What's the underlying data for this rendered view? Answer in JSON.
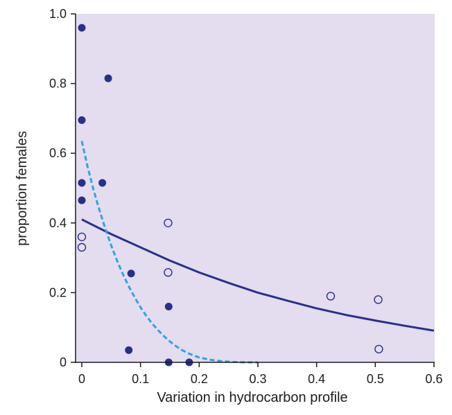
{
  "colors": {
    "plot_background": "#e4dcef",
    "axis": "#1c1c1c",
    "filled_points": "#27308c",
    "open_points": "#27308c",
    "solid_curve": "#27308c",
    "dashed_curve": "#2aa6df"
  },
  "chart_data": {
    "type": "scatter",
    "xlabel": "Variation in hydrocarbon profile",
    "ylabel": "proportion females",
    "xlim": [
      -0.01,
      0.6
    ],
    "ylim": [
      0,
      1.0
    ],
    "x_ticks": [
      0,
      0.1,
      0.2,
      0.3,
      0.4,
      0.5,
      0.6
    ],
    "x_tick_labels": [
      "0",
      "0.1",
      "0.2",
      "0.3",
      "0.4",
      "0.5",
      "0.6"
    ],
    "y_ticks": [
      0,
      0.2,
      0.4,
      0.6,
      0.8,
      1.0
    ],
    "y_tick_labels": [
      "0",
      "0.2",
      "0.4",
      "0.6",
      "0.8",
      "1.0"
    ],
    "grid": false,
    "legend": "none",
    "series": [
      {
        "marker": "filled-circle",
        "points": [
          [
            0.0,
            0.96
          ],
          [
            0.045,
            0.815
          ],
          [
            0.0,
            0.695
          ],
          [
            0.0,
            0.515
          ],
          [
            0.035,
            0.515
          ],
          [
            0.0,
            0.465
          ],
          [
            0.084,
            0.255
          ],
          [
            0.148,
            0.16
          ],
          [
            0.08,
            0.035
          ],
          [
            0.148,
            0.0
          ],
          [
            0.183,
            0.0
          ]
        ]
      },
      {
        "marker": "open-circle",
        "points": [
          [
            0.0,
            0.36
          ],
          [
            0.0,
            0.33
          ],
          [
            0.147,
            0.4
          ],
          [
            0.147,
            0.258
          ],
          [
            0.424,
            0.19
          ],
          [
            0.505,
            0.18
          ],
          [
            0.506,
            0.038
          ]
        ]
      }
    ],
    "curves": [
      {
        "style": "solid",
        "points": [
          [
            0.0,
            0.41
          ],
          [
            0.05,
            0.368
          ],
          [
            0.1,
            0.33
          ],
          [
            0.15,
            0.292
          ],
          [
            0.2,
            0.258
          ],
          [
            0.25,
            0.228
          ],
          [
            0.3,
            0.2
          ],
          [
            0.35,
            0.177
          ],
          [
            0.4,
            0.155
          ],
          [
            0.45,
            0.136
          ],
          [
            0.5,
            0.12
          ],
          [
            0.55,
            0.105
          ],
          [
            0.6,
            0.091
          ]
        ]
      },
      {
        "style": "dashed",
        "points": [
          [
            0.0,
            0.635
          ],
          [
            0.01,
            0.56
          ],
          [
            0.02,
            0.495
          ],
          [
            0.03,
            0.437
          ],
          [
            0.04,
            0.384
          ],
          [
            0.05,
            0.336
          ],
          [
            0.06,
            0.292
          ],
          [
            0.07,
            0.253
          ],
          [
            0.08,
            0.218
          ],
          [
            0.09,
            0.187
          ],
          [
            0.1,
            0.158
          ],
          [
            0.11,
            0.133
          ],
          [
            0.12,
            0.111
          ],
          [
            0.13,
            0.092
          ],
          [
            0.14,
            0.075
          ],
          [
            0.15,
            0.06
          ],
          [
            0.16,
            0.047
          ],
          [
            0.17,
            0.036
          ],
          [
            0.18,
            0.027
          ],
          [
            0.19,
            0.02
          ],
          [
            0.2,
            0.014
          ],
          [
            0.22,
            0.007
          ],
          [
            0.24,
            0.003
          ],
          [
            0.26,
            0.001
          ],
          [
            0.28,
            0.0
          ],
          [
            0.3,
            0.0
          ]
        ]
      }
    ]
  }
}
